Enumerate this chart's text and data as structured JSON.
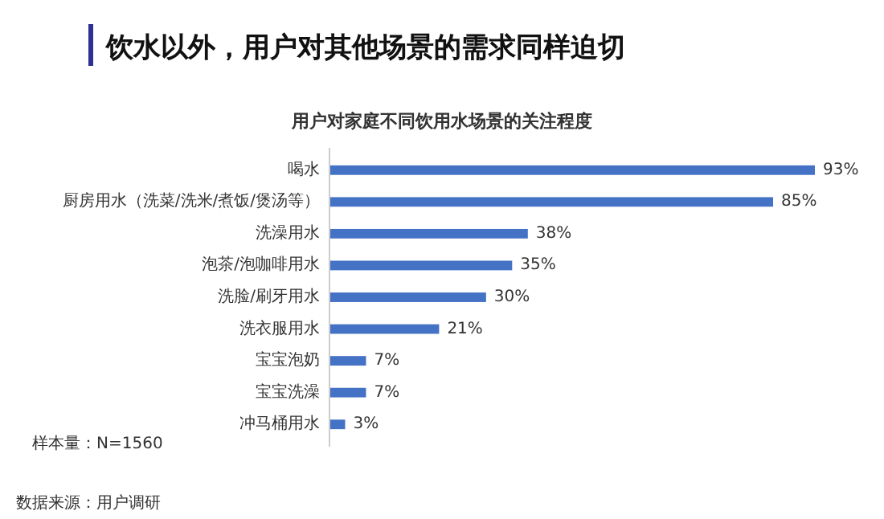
{
  "chart_data": {
    "type": "bar",
    "orientation": "horizontal",
    "title": "饮水以外，用户对其他场景的需求同样迫切",
    "subtitle": "用户对家庭不同饮用水场景的关注程度",
    "categories": [
      "喝水",
      "厨房用水（洗菜/洗米/煮饭/煲汤等）",
      "洗澡用水",
      "泡茶/泡咖啡用水",
      "洗脸/刷牙用水",
      "洗衣服用水",
      "宝宝泡奶",
      "宝宝洗澡",
      "冲马桶用水"
    ],
    "values": [
      93,
      85,
      38,
      35,
      30,
      21,
      7,
      7,
      3
    ],
    "value_labels": [
      "93%",
      "85%",
      "38%",
      "35%",
      "30%",
      "21%",
      "7%",
      "7%",
      "3%"
    ],
    "color": "#4472c4",
    "tick_labels": "y",
    "annotations": [
      "样本量：N=1560",
      "数据来源：用户调研"
    ]
  }
}
